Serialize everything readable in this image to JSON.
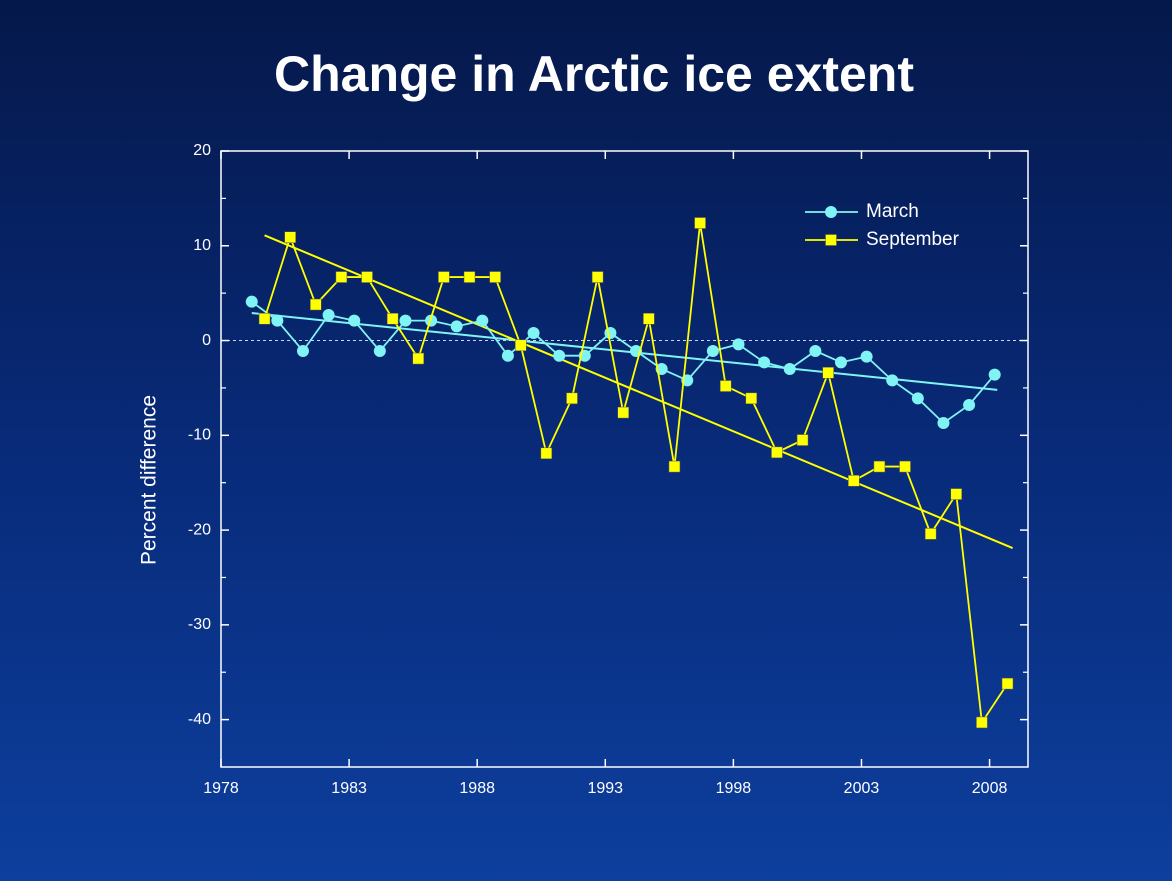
{
  "chart_data": {
    "type": "line",
    "title": "Change in Arctic ice extent",
    "ylabel": "Percent difference",
    "xlim": [
      1978,
      2009.5
    ],
    "xticks": [
      1978,
      1983,
      1988,
      1993,
      1998,
      2003,
      2008
    ],
    "ylim": [
      -45,
      20
    ],
    "yticks": [
      20,
      10,
      0,
      -10,
      -20,
      -30,
      -40
    ],
    "yminorticks": [
      15,
      5,
      -5,
      -15,
      -25,
      -35
    ],
    "legend": "upper right",
    "series": [
      {
        "name": "March",
        "color": "#80f4f4",
        "marker": "circle",
        "x": [
          1979.2,
          1980.2,
          1981.2,
          1982.2,
          1983.2,
          1984.2,
          1985.2,
          1986.2,
          1987.2,
          1988.2,
          1989.2,
          1990.2,
          1991.2,
          1992.2,
          1993.2,
          1994.2,
          1995.2,
          1996.2,
          1997.2,
          1998.2,
          1999.2,
          2000.2,
          2001.2,
          2002.2,
          2003.2,
          2004.2,
          2005.2,
          2006.2,
          2007.2,
          2008.2
        ],
        "values": [
          4.1,
          2.1,
          -1.1,
          2.7,
          2.1,
          -1.1,
          2.1,
          2.1,
          1.5,
          2.1,
          -1.6,
          0.8,
          -1.6,
          -1.6,
          0.8,
          -1.1,
          -3.0,
          -4.2,
          -1.1,
          -0.4,
          -2.3,
          -3.0,
          -1.1,
          -2.3,
          -1.7,
          -4.2,
          -6.1,
          -8.7,
          -6.8,
          -3.6
        ]
      },
      {
        "name": "September",
        "color": "#ffff00",
        "marker": "square",
        "x": [
          1979.7,
          1980.7,
          1981.7,
          1982.7,
          1983.7,
          1984.7,
          1985.7,
          1986.7,
          1987.7,
          1988.7,
          1989.7,
          1990.7,
          1991.7,
          1992.7,
          1993.7,
          1994.7,
          1995.7,
          1996.7,
          1997.7,
          1998.7,
          1999.7,
          2000.7,
          2001.7,
          2002.7,
          2003.7,
          2004.7,
          2005.7,
          2006.7,
          2007.7,
          2008.7
        ],
        "values": [
          2.3,
          10.9,
          3.8,
          6.7,
          6.7,
          2.3,
          -1.9,
          6.7,
          6.7,
          6.7,
          -0.5,
          -11.9,
          -6.1,
          6.7,
          -7.6,
          2.3,
          -13.3,
          12.4,
          -4.8,
          -6.1,
          -11.8,
          -10.5,
          -3.4,
          -14.8,
          -13.3,
          -13.3,
          -20.4,
          -16.2,
          -40.3,
          -36.2
        ]
      }
    ],
    "trend_lines": [
      {
        "color": "#80f4f4",
        "x": [
          1979.2,
          2008.3
        ],
        "values": [
          2.9,
          -5.2
        ]
      },
      {
        "color": "#ffff00",
        "x": [
          1979.7,
          2008.9
        ],
        "values": [
          11.1,
          -21.9
        ]
      }
    ]
  }
}
